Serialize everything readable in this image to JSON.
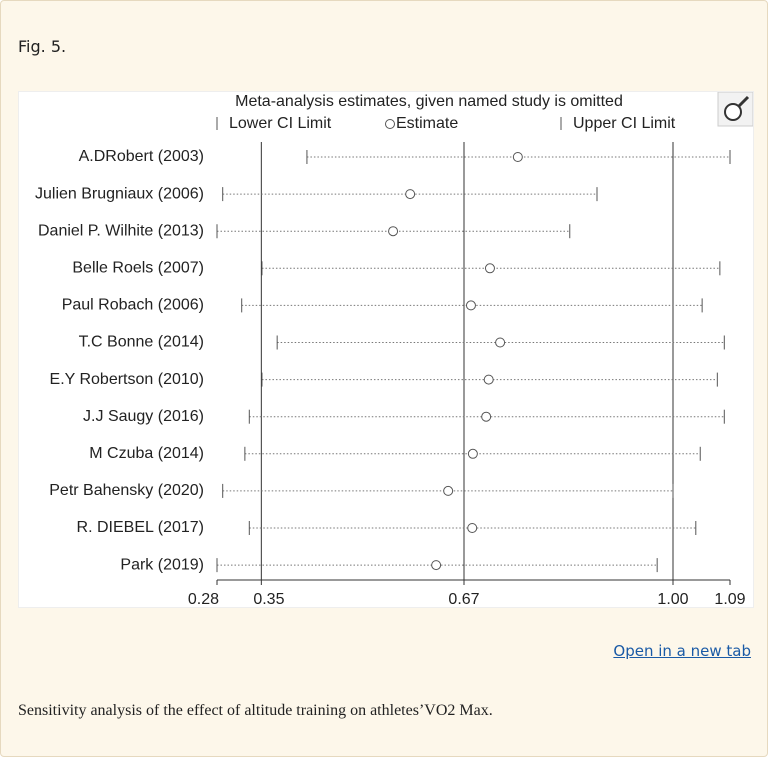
{
  "header": {
    "figure_label": "Fig. 5."
  },
  "link": "Open in a new tab",
  "caption": "Sensitivity analysis of the effect of altitude training on athletes’VO2 Max.",
  "chart_data": {
    "type": "sensitivity",
    "title": "Meta-analysis estimates, given named study is omitted",
    "categories": [
      "A.DRobert (2003)",
      "Julien Brugniaux (2006)",
      "Daniel P. Wilhite (2013)",
      "Belle Roels (2007)",
      "Paul Robach (2006)",
      "T.C Bonne (2014)",
      "E.Y Robertson (2010)",
      "J.J Saugy (2016)",
      "M Czuba (2014)",
      "Petr Bahensky (2020)",
      "R. DIEBEL (2017)",
      "Park (2019)"
    ],
    "series": [
      {
        "name": "Lower CI Limit",
        "color": "#555555",
        "values": [
          0.422,
          0.289,
          0.28,
          0.351,
          0.319,
          0.375,
          0.351,
          0.331,
          0.324,
          0.289,
          0.331,
          0.28
        ]
      },
      {
        "name": "Estimate",
        "color": "#555555",
        "values": [
          0.755,
          0.585,
          0.558,
          0.711,
          0.681,
          0.727,
          0.709,
          0.705,
          0.684,
          0.645,
          0.683,
          0.626
        ]
      },
      {
        "name": "Upper CI Limit",
        "color": "#555555",
        "values": [
          1.09,
          0.88,
          0.837,
          1.074,
          1.046,
          1.081,
          1.07,
          1.081,
          1.043,
          1.0,
          1.036,
          0.975
        ]
      }
    ],
    "xlim": [
      0.28,
      1.09
    ],
    "xticks": [
      0.28,
      0.35,
      0.67,
      {
        "value": 1.0,
        "label": "1.00"
      },
      1.09
    ],
    "reference_lines": [
      0.35,
      0.67,
      1.0
    ]
  }
}
